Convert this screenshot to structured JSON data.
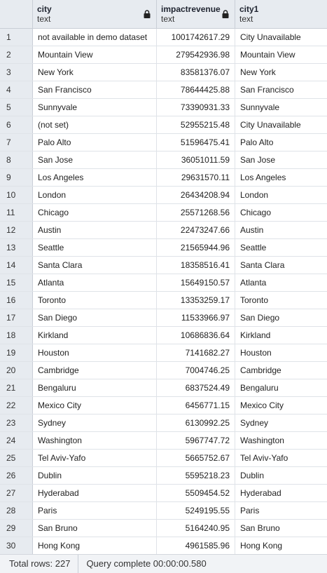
{
  "columns": [
    {
      "name": "city",
      "type": "text"
    },
    {
      "name": "impactrevenue",
      "type": "text"
    },
    {
      "name": "city1",
      "type": "text"
    }
  ],
  "rows": [
    [
      "1",
      "not available in demo dataset",
      "1001742617.29",
      "City Unavailable"
    ],
    [
      "2",
      "Mountain View",
      "279542936.98",
      "Mountain View"
    ],
    [
      "3",
      "New York",
      "83581376.07",
      "New York"
    ],
    [
      "4",
      "San Francisco",
      "78644425.88",
      "San Francisco"
    ],
    [
      "5",
      "Sunnyvale",
      "73390931.33",
      "Sunnyvale"
    ],
    [
      "6",
      "(not set)",
      "52955215.48",
      "City Unavailable"
    ],
    [
      "7",
      "Palo Alto",
      "51596475.41",
      "Palo Alto"
    ],
    [
      "8",
      "San Jose",
      "36051011.59",
      "San Jose"
    ],
    [
      "9",
      "Los Angeles",
      "29631570.11",
      "Los Angeles"
    ],
    [
      "10",
      "London",
      "26434208.94",
      "London"
    ],
    [
      "11",
      "Chicago",
      "25571268.56",
      "Chicago"
    ],
    [
      "12",
      "Austin",
      "22473247.66",
      "Austin"
    ],
    [
      "13",
      "Seattle",
      "21565944.96",
      "Seattle"
    ],
    [
      "14",
      "Santa Clara",
      "18358516.41",
      "Santa Clara"
    ],
    [
      "15",
      "Atlanta",
      "15649150.57",
      "Atlanta"
    ],
    [
      "16",
      "Toronto",
      "13353259.17",
      "Toronto"
    ],
    [
      "17",
      "San Diego",
      "11533966.97",
      "San Diego"
    ],
    [
      "18",
      "Kirkland",
      "10686836.64",
      "Kirkland"
    ],
    [
      "19",
      "Houston",
      "7141682.27",
      "Houston"
    ],
    [
      "20",
      "Cambridge",
      "7004746.25",
      "Cambridge"
    ],
    [
      "21",
      "Bengaluru",
      "6837524.49",
      "Bengaluru"
    ],
    [
      "22",
      "Mexico City",
      "6456771.15",
      "Mexico City"
    ],
    [
      "23",
      "Sydney",
      "6130992.25",
      "Sydney"
    ],
    [
      "24",
      "Washington",
      "5967747.72",
      "Washington"
    ],
    [
      "25",
      "Tel Aviv-Yafo",
      "5665752.67",
      "Tel Aviv-Yafo"
    ],
    [
      "26",
      "Dublin",
      "5595218.23",
      "Dublin"
    ],
    [
      "27",
      "Hyderabad",
      "5509454.52",
      "Hyderabad"
    ],
    [
      "28",
      "Paris",
      "5249195.55",
      "Paris"
    ],
    [
      "29",
      "San Bruno",
      "5164240.95",
      "San Bruno"
    ],
    [
      "30",
      "Hong Kong",
      "4961585.96",
      "Hong Kong"
    ]
  ],
  "status": {
    "total_rows": "Total rows: 227",
    "query": "Query complete 00:00:00.580"
  },
  "icons": {
    "column_lock": "lock-icon"
  }
}
